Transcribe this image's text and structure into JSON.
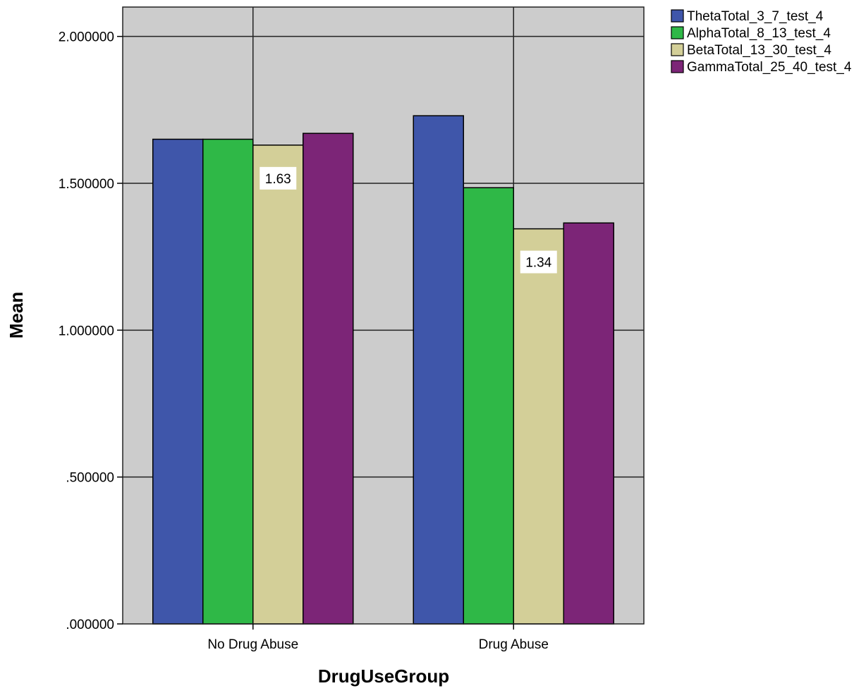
{
  "chart_data": {
    "type": "bar",
    "xlabel": "DrugUseGroup",
    "ylabel": "Mean",
    "categories": [
      "No Drug Abuse",
      "Drug Abuse"
    ],
    "series": [
      {
        "name": "ThetaTotal_3_7_test_4",
        "color": "#3f56aa",
        "values": [
          1.65,
          1.73
        ]
      },
      {
        "name": "AlphaTotal_8_13_test_4",
        "color": "#2fb847",
        "values": [
          1.65,
          1.485
        ]
      },
      {
        "name": "BetaTotal_13_30_test_4",
        "color": "#d3cf98",
        "values": [
          1.63,
          1.345
        ]
      },
      {
        "name": "GammaTotal_25_40_test_4",
        "color": "#7c2577",
        "values": [
          1.67,
          1.365
        ]
      }
    ],
    "ylim": [
      0,
      2.1
    ],
    "yticks": [
      0,
      0.5,
      1.0,
      1.5,
      2.0
    ],
    "ytick_labels": [
      ".000000",
      ".500000",
      "1.000000",
      "1.500000",
      "2.000000"
    ],
    "data_labels": [
      {
        "series": 2,
        "category": 0,
        "text": "1.63"
      },
      {
        "series": 2,
        "category": 1,
        "text": "1.34"
      }
    ],
    "grid": true,
    "plot_background": "#cccccc",
    "legend": {
      "position": "top-right"
    }
  }
}
